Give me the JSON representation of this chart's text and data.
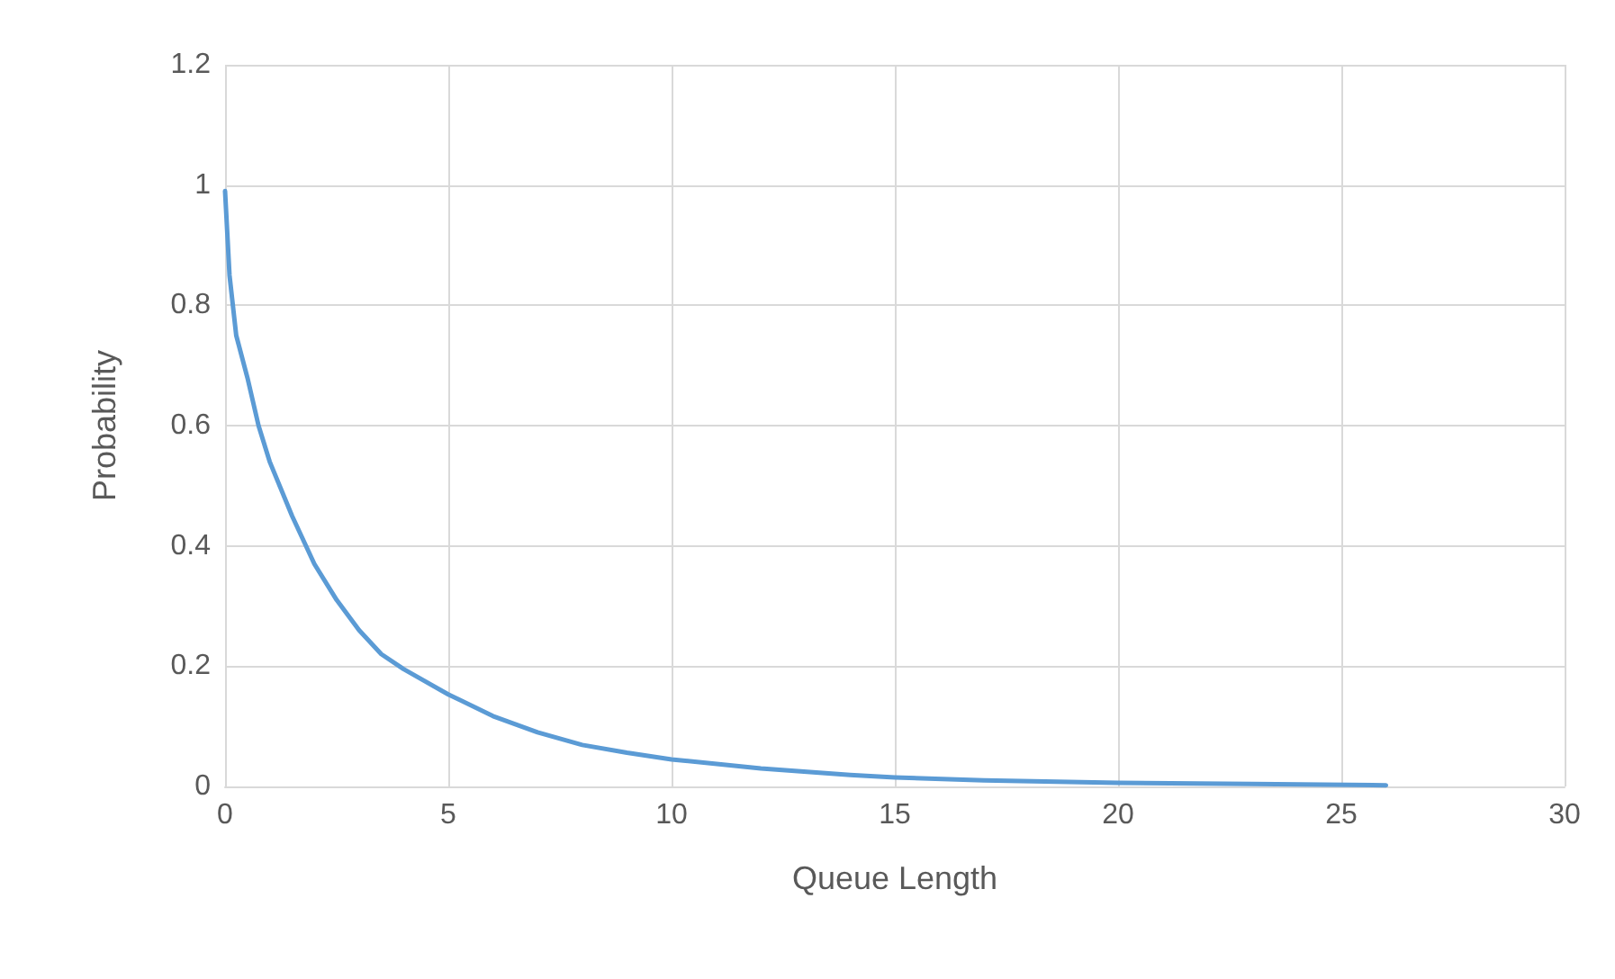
{
  "chart_data": {
    "type": "line",
    "xlabel": "Queue Length",
    "ylabel": "Probability",
    "series": [
      {
        "color": "#5b9bd5",
        "x": [
          0,
          0.1,
          0.25,
          0.5,
          0.75,
          1,
          1.5,
          2,
          2.5,
          3,
          3.5,
          4,
          5,
          6,
          7,
          8,
          9,
          10,
          12,
          14,
          15,
          17,
          20,
          23,
          26
        ],
        "values": [
          0.99,
          0.85,
          0.75,
          0.68,
          0.6,
          0.54,
          0.45,
          0.37,
          0.31,
          0.26,
          0.22,
          0.195,
          0.153,
          0.117,
          0.09,
          0.069,
          0.056,
          0.045,
          0.03,
          0.019,
          0.015,
          0.01,
          0.006,
          0.004,
          0.002
        ]
      }
    ],
    "xlim": [
      0,
      30
    ],
    "xticks": [
      0,
      5,
      10,
      15,
      20,
      25,
      30
    ],
    "ylim": [
      0,
      1.2
    ],
    "yticks": [
      0,
      0.2,
      0.4,
      0.6,
      0.8,
      1,
      1.2
    ],
    "grid": true,
    "marker": "none",
    "line_style": "solid"
  }
}
